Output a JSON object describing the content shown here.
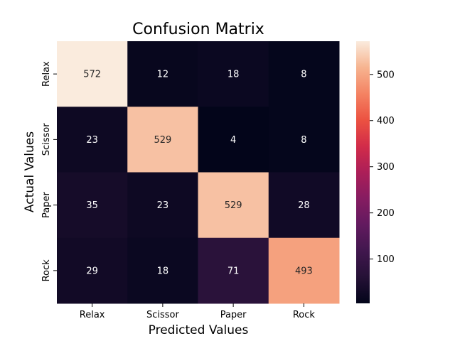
{
  "chart_data": {
    "type": "heatmap",
    "title": "Confusion Matrix",
    "xlabel": "Predicted Values",
    "ylabel": "Actual Values",
    "x_categories": [
      "Relax",
      "Scissor",
      "Paper",
      "Rock"
    ],
    "y_categories": [
      "Relax",
      "Scissor",
      "Paper",
      "Rock"
    ],
    "values": [
      [
        572,
        12,
        18,
        8
      ],
      [
        23,
        529,
        4,
        8
      ],
      [
        35,
        23,
        529,
        28
      ],
      [
        29,
        18,
        71,
        493
      ]
    ],
    "colorbar": {
      "range": [
        4,
        572
      ],
      "ticks": [
        100,
        200,
        300,
        400,
        500
      ],
      "colormap": "rocket"
    },
    "grid": false
  }
}
